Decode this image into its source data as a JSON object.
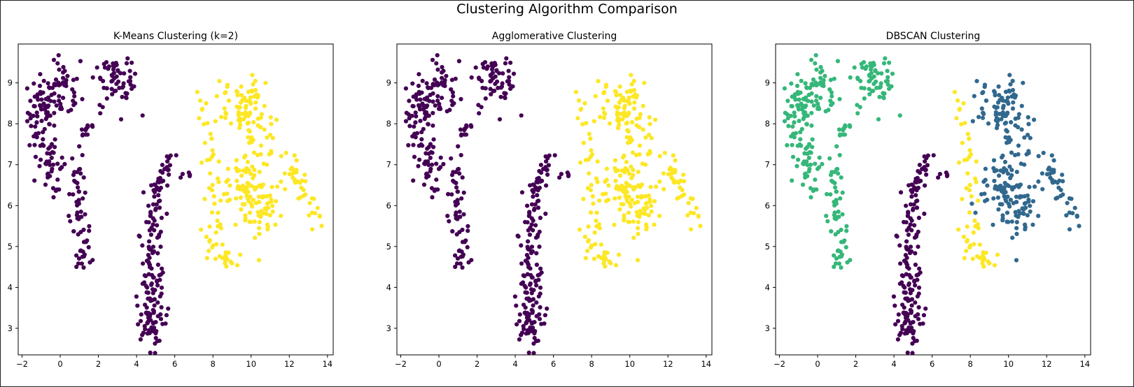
{
  "figure": {
    "title": "Clustering Algorithm Comparison"
  },
  "chart_data": [
    {
      "type": "scatter",
      "title": "K-Means Clustering (k=2)",
      "xlim": [
        -2.2,
        14.3
      ],
      "ylim": [
        2.35,
        9.95
      ],
      "xticks": [
        -2,
        0,
        2,
        4,
        6,
        8,
        10,
        12,
        14
      ],
      "yticks": [
        3,
        4,
        5,
        6,
        7,
        8,
        9
      ],
      "grid": false,
      "series": [
        {
          "color": "#440154",
          "clusters": [
            "upper-left",
            "left-arm",
            "middle-column",
            "middle-top"
          ]
        },
        {
          "color": "#fde725",
          "clusters": [
            "right-left",
            "right-body"
          ]
        }
      ]
    },
    {
      "type": "scatter",
      "title": "Agglomerative Clustering",
      "xlim": [
        -2.2,
        14.3
      ],
      "ylim": [
        2.35,
        9.95
      ],
      "xticks": [
        -2,
        0,
        2,
        4,
        6,
        8,
        10,
        12,
        14
      ],
      "yticks": [
        3,
        4,
        5,
        6,
        7,
        8,
        9
      ],
      "grid": false,
      "series": [
        {
          "color": "#440154",
          "clusters": [
            "upper-left",
            "left-arm",
            "middle-column",
            "middle-top"
          ]
        },
        {
          "color": "#fde725",
          "clusters": [
            "right-left",
            "right-body"
          ]
        }
      ]
    },
    {
      "type": "scatter",
      "title": "DBSCAN Clustering",
      "xlim": [
        -2.2,
        14.3
      ],
      "ylim": [
        2.35,
        9.95
      ],
      "xticks": [
        -2,
        0,
        2,
        4,
        6,
        8,
        10,
        12,
        14
      ],
      "yticks": [
        3,
        4,
        5,
        6,
        7,
        8,
        9
      ],
      "grid": false,
      "series": [
        {
          "color": "#35b779",
          "clusters": [
            "upper-left",
            "left-arm"
          ]
        },
        {
          "color": "#440154",
          "clusters": [
            "middle-column",
            "middle-top"
          ]
        },
        {
          "color": "#fde725",
          "clusters": [
            "right-left"
          ]
        },
        {
          "color": "#31688e",
          "clusters": [
            "right-body"
          ]
        }
      ]
    }
  ]
}
